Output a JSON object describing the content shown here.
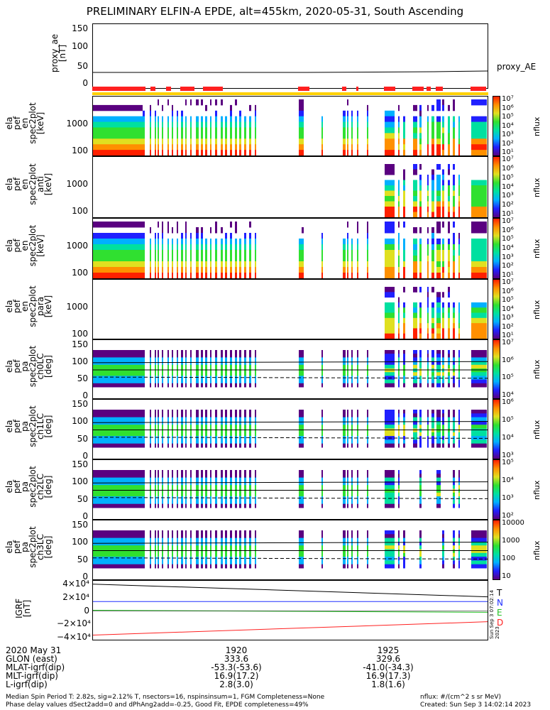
{
  "title": "PRELIMINARY ELFIN-A EPDE, alt=455km, 2020-05-31, South Ascending",
  "colors": {
    "spectrum": [
      "#5a0080",
      "#2020ff",
      "#00b0ff",
      "#00e0a0",
      "#30e030",
      "#e0e020",
      "#ff9000",
      "#ff2000"
    ]
  },
  "chart_data": [
    {
      "type": "line",
      "name": "proxy_ae",
      "ylabel": "proxy_ae\n[nT]",
      "ylim": [
        -10,
        160
      ],
      "ticks": [
        "150",
        "100",
        "50",
        "0"
      ],
      "series": [
        {
          "name": "proxy_AE",
          "values": [
            30,
            30,
            30,
            31,
            32,
            33
          ]
        }
      ],
      "legend": "proxy_AE"
    },
    {
      "type": "heatmap",
      "name": "ela_pef_en_spec2plot",
      "ylabel": "ela\npef\nen\nspec2plot\n[keV]",
      "ticks": [
        "1000",
        "100"
      ],
      "cbar_labels": [
        "10⁷",
        "10⁶",
        "10⁵",
        "10⁴",
        "10³",
        "10²",
        "10¹"
      ],
      "cbar_title": "nflux"
    },
    {
      "type": "heatmap",
      "name": "ela_pef_en_spec2plot_anti",
      "ylabel": "ela\npef\nen\nspec2plot\nanti\n[keV]",
      "ticks": [
        "1000",
        "100"
      ],
      "cbar_labels": [
        "10⁷",
        "10⁶",
        "10⁵",
        "10⁴",
        "10³",
        "10²",
        "10¹"
      ],
      "cbar_title": "nflux"
    },
    {
      "type": "heatmap",
      "name": "ela_pef_en_spec2plot_perp",
      "ylabel": "ela\npef\nen\nspec2plot\n[keV]",
      "ticks": [
        "1000",
        "100"
      ],
      "cbar_labels": [
        "10⁷",
        "10⁶",
        "10⁵",
        "10⁴",
        "10³",
        "10²",
        "10¹"
      ],
      "cbar_title": "nflux"
    },
    {
      "type": "heatmap",
      "name": "ela_pef_en_spec2plot_para",
      "ylabel": "ela\npef\nen\nspec2plot\npara\n[keV]",
      "ticks": [
        "1000",
        "100"
      ],
      "cbar_labels": [
        "10⁷",
        "10⁶",
        "10⁵",
        "10⁴",
        "10³",
        "10²",
        "10¹"
      ],
      "cbar_title": "nflux"
    },
    {
      "type": "heatmap",
      "name": "ela_pef_pa_spec2plot_ch0LC",
      "ylabel": "ela\npef\npa\nspec2plot\nch0LC\n[deg]",
      "ticks": [
        "150",
        "100",
        "50",
        "0"
      ],
      "cbar_labels": [
        "10⁷",
        "10⁶",
        "10⁵",
        "10⁴"
      ],
      "cbar_title": "nflux"
    },
    {
      "type": "heatmap",
      "name": "ela_pef_pa_spec2plot_ch1LC",
      "ylabel": "ela\npef\npa\nspec2plot\nch1LC\n[deg]",
      "ticks": [
        "150",
        "100",
        "50",
        "0"
      ],
      "cbar_labels": [
        "10⁶",
        "10⁵",
        "10⁴",
        "10³"
      ],
      "cbar_title": "nflux"
    },
    {
      "type": "heatmap",
      "name": "ela_pef_pa_spec2plot_ch2LC",
      "ylabel": "ela\npef\npa\nspec2plot\nch2LC\n[deg]",
      "ticks": [
        "150",
        "100",
        "50",
        "0"
      ],
      "cbar_labels": [
        "10⁵",
        "10⁴",
        "10³",
        "10²"
      ],
      "cbar_title": "nflux"
    },
    {
      "type": "heatmap",
      "name": "ela_pef_pa_spec2plot_ch3LC",
      "ylabel": "ela\npef\npa\nspec2plot\nch3LC\n[deg]",
      "ticks": [
        "150",
        "100",
        "50",
        "0"
      ],
      "cbar_labels": [
        "10000",
        "1000",
        "100",
        "10"
      ],
      "cbar_title": "nflux"
    },
    {
      "type": "line",
      "name": "IGRF",
      "ylabel": "IGRF\n[nT]",
      "ylim": [
        -45000,
        45000
      ],
      "ticks": [
        "4×10⁴",
        "2×10⁴",
        "0",
        "−2×10⁴",
        "−4×10⁴"
      ],
      "series": [
        {
          "name": "T",
          "color": "#000000",
          "values": [
            40000,
            21000
          ]
        },
        {
          "name": "N",
          "color": "#2030ff",
          "values": [
            14000,
            14000
          ]
        },
        {
          "name": "E",
          "color": "#20c020",
          "values": [
            1000,
            -2000
          ]
        },
        {
          "name": "D",
          "color": "#ff2020",
          "values": [
            -36000,
            -16000
          ]
        }
      ],
      "legend": [
        "T",
        "N",
        "E",
        "D"
      ]
    }
  ],
  "xaxis": {
    "rows": [
      {
        "label": "2020 May 31",
        "v1": "1920",
        "v2": "1925"
      },
      {
        "label": "GLON (east)",
        "v1": "333.6",
        "v2": "329.6"
      },
      {
        "label": "MLAT-igrf(dip)",
        "v1": "-53.3(-53.6)",
        "v2": "-41.0(-34.3)"
      },
      {
        "label": "MLT-igrf(dip)",
        "v1": "16.9(17.2)",
        "v2": "16.9(17.3)"
      },
      {
        "label": "L-igrf(dip)",
        "v1": "2.8(3.0)",
        "v2": "1.8(1.6)"
      }
    ]
  },
  "footer": {
    "line1": "Median Spin Period T: 2.82s, sig=2.12% T, nsectors=16, nspinsinsum=1, FGM Completeness=None",
    "line2": "Phase delay values dSect2add=0 and dPhAng2add=-0.25, Good Fit, EPDE completeness=49%",
    "units": "nflux: #/(cm^2 s sr MeV)",
    "created": "Created: Sun Sep  3 14:02:14 2023",
    "side_stamp": "Sun Sep  3 07:02:14 2023"
  }
}
